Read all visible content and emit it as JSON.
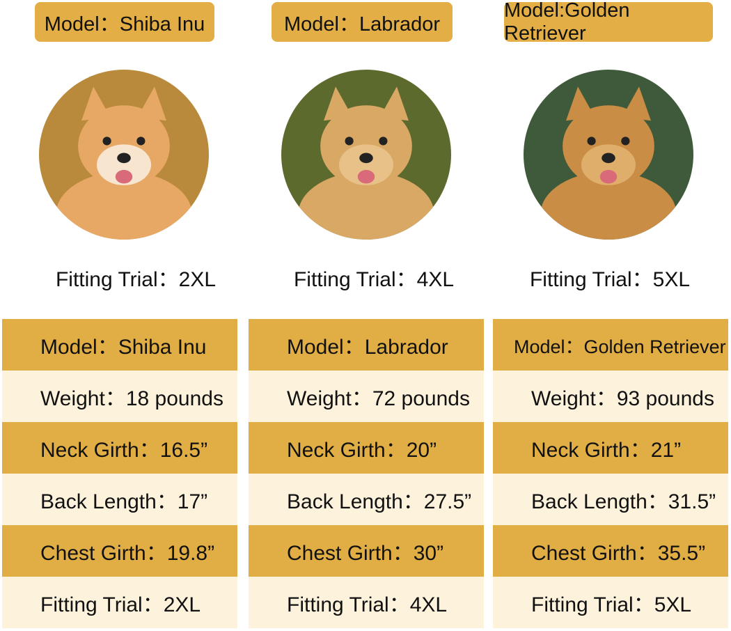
{
  "models": [
    {
      "tag": "Model：Shiba Inu",
      "photo": "shiba-inu-photo",
      "fit": "Fitting Trial：2XL",
      "rows": [
        "Model：Shiba Inu",
        "Weight：18 pounds",
        "Neck Girth：16.5”",
        "Back Length：17”",
        "Chest Girth：19.8”",
        "Fitting Trial：2XL"
      ],
      "colors": {
        "bg": "#b98a3c",
        "fur": "#e7a865",
        "face": "#f7e5cf"
      }
    },
    {
      "tag": "Model：Labrador",
      "photo": "labrador-photo",
      "fit": "Fitting Trial：4XL",
      "rows": [
        "Model：Labrador",
        "Weight：72 pounds",
        "Neck Girth：20”",
        "Back Length：27.5”",
        "Chest Girth：30”",
        "Fitting Trial：4XL"
      ],
      "colors": {
        "bg": "#5d6a2e",
        "fur": "#d9a865",
        "face": "#e8c188"
      }
    },
    {
      "tag": "Model:Golden Retriever",
      "photo": "golden-retriever-photo",
      "fit": "Fitting Trial：5XL",
      "rows": [
        "Model：Golden Retriever",
        "Weight：93 pounds",
        "Neck Girth：21”",
        "Back Length：31.5”",
        "Chest Girth：35.5”",
        "Fitting Trial：5XL"
      ],
      "colors": {
        "bg": "#3f5a3a",
        "fur": "#c98d45",
        "face": "#dfae6b"
      }
    }
  ],
  "palette": {
    "gold": "#E1AE45",
    "cream": "#FDF2DC"
  }
}
